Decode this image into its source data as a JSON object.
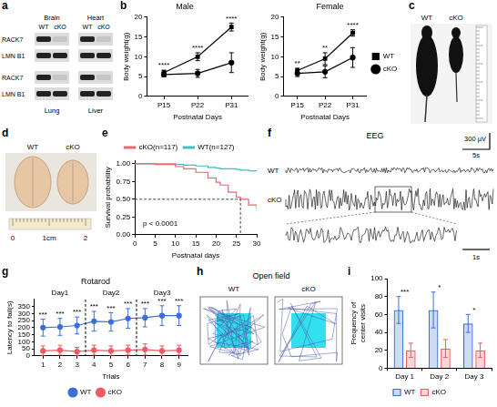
{
  "blot": {
    "panel": "a",
    "tissues": [
      "Brain",
      "Heart",
      "Lung",
      "Liver"
    ],
    "columns": [
      "WT",
      "cKO"
    ],
    "rows": [
      "RACK7",
      "LMN B1"
    ]
  },
  "chart_data": [
    {
      "panel": "b",
      "type": "line",
      "title": "Male",
      "categories": [
        "P15",
        "P22",
        "P31"
      ],
      "x_label": "Postnatal Days",
      "y_label": "Body weight(g)",
      "ylim": [
        0,
        20
      ],
      "yticks": [
        0,
        5,
        10,
        15,
        20
      ],
      "grid": false,
      "series": [
        {
          "name": "WT",
          "color": "#000000",
          "marker": "square",
          "values": [
            6,
            10,
            17.5
          ],
          "errors": [
            0.6,
            1,
            1
          ]
        },
        {
          "name": "cKO",
          "color": "#000000",
          "marker": "circle",
          "values": [
            5.5,
            5.8,
            8.5
          ],
          "errors": [
            0.6,
            1,
            2.5
          ]
        }
      ],
      "significance": [
        "****",
        "****",
        "****"
      ]
    },
    {
      "type": "line",
      "title": "Female",
      "categories": [
        "P15",
        "P22",
        "P31"
      ],
      "x_label": "Postnatal Days",
      "y_label": "Body weight(g)",
      "ylim": [
        0,
        20
      ],
      "yticks": [
        0,
        5,
        10,
        15,
        20
      ],
      "grid": false,
      "legend": "right",
      "series": [
        {
          "name": "WT",
          "color": "#000000",
          "marker": "square",
          "values": [
            6.5,
            9.5,
            16
          ],
          "errors": [
            0.6,
            1.5,
            0.8
          ]
        },
        {
          "name": "cKO",
          "color": "#000000",
          "marker": "circle",
          "values": [
            5.8,
            6.2,
            9.8
          ],
          "errors": [
            0.8,
            1.5,
            2.5
          ]
        }
      ],
      "significance": [
        "**",
        "**",
        "****"
      ]
    },
    {
      "panel": "e",
      "type": "line",
      "line_style": "step",
      "x": [
        0,
        5,
        10,
        12,
        15,
        18,
        20,
        21,
        23,
        25,
        26,
        28,
        30
      ],
      "x_label": "Postnatal days",
      "y_label": "Survival probability",
      "xlim": [
        0,
        30
      ],
      "xticks": [
        0,
        5,
        10,
        15,
        20,
        25,
        30
      ],
      "ylim": [
        0,
        1.05
      ],
      "yticks": [
        {
          "value": 0,
          "label": "0.00"
        },
        0.25,
        {
          "value": 0.5,
          "label": "0.50"
        },
        0.75,
        {
          "value": 1,
          "label": "1.00"
        }
      ],
      "grid": false,
      "legend": "top",
      "series": [
        {
          "name": "cKO(n=117)",
          "color": "#f0646e",
          "values": [
            1,
            0.99,
            0.96,
            0.93,
            0.88,
            0.8,
            0.74,
            0.7,
            0.6,
            0.53,
            0.5,
            0.42,
            0.37
          ]
        },
        {
          "name": "WT(n=127)",
          "color": "#36c2c8",
          "values": [
            1,
            1,
            0.99,
            0.98,
            0.97,
            0.95,
            0.94,
            0.93,
            0.93,
            0.92,
            0.91,
            0.9,
            0.9
          ]
        }
      ],
      "annotation": {
        "text": "p < 0.0001",
        "x": 2,
        "y": 0.1
      },
      "median_survival": {
        "x": 26,
        "y": 0.5
      }
    },
    {
      "panel": "g",
      "type": "line",
      "title": "Rotarod",
      "categories": [
        "1",
        "2",
        "3",
        "4",
        "5",
        "6",
        "7",
        "8",
        "9"
      ],
      "x_label": "Trials",
      "y_label": "Latency to fail(s)",
      "ylim": [
        0,
        400
      ],
      "yticks": [
        0,
        50,
        100,
        150,
        200,
        250,
        300,
        350
      ],
      "grid": false,
      "legend": "bottom",
      "groups": [
        {
          "label": "Day1",
          "categories": [
            "1",
            "2",
            "3"
          ]
        },
        {
          "label": "Day2",
          "categories": [
            "4",
            "5",
            "6"
          ]
        },
        {
          "label": "Day3",
          "categories": [
            "7",
            "8",
            "9"
          ]
        }
      ],
      "series": [
        {
          "name": "WT",
          "color": "#3b6fd6",
          "marker": "circle",
          "values": [
            200,
            205,
            215,
            245,
            240,
            265,
            270,
            285,
            285
          ],
          "errors": [
            60,
            60,
            60,
            70,
            65,
            70,
            65,
            70,
            70
          ]
        },
        {
          "name": "cKO",
          "color": "#ef5b63",
          "marker": "circle",
          "values": [
            35,
            40,
            30,
            40,
            35,
            40,
            45,
            35,
            40
          ],
          "errors": [
            35,
            35,
            30,
            35,
            35,
            35,
            40,
            35,
            35
          ]
        }
      ],
      "significance": [
        "***",
        "***",
        "***",
        "***",
        "***",
        "***",
        "***",
        "***",
        "***"
      ]
    },
    {
      "panel": "i",
      "type": "bar",
      "categories": [
        "Day 1",
        "Day 2",
        "Day 3"
      ],
      "y_label": "Frequency of center visits",
      "ylim": [
        0,
        100
      ],
      "yticks": [
        0,
        20,
        40,
        60,
        80,
        100
      ],
      "grid": false,
      "legend": "bottom",
      "series": [
        {
          "name": "WT",
          "color": "#3b6fd6",
          "values": [
            65,
            65,
            50
          ],
          "errors": [
            15,
            20,
            10
          ]
        },
        {
          "name": "cKO",
          "color": "#ef5b63",
          "values": [
            20,
            22,
            20
          ],
          "errors": [
            8,
            10,
            8
          ]
        }
      ],
      "significance": [
        "***",
        "*",
        "*"
      ]
    }
  ],
  "photo_mice": {
    "panel": "c",
    "labels": [
      "WT",
      "cKO"
    ]
  },
  "photo_brains": {
    "panel": "d",
    "labels": [
      "WT",
      "cKO"
    ],
    "ruler": [
      "0",
      "1cm",
      "2"
    ]
  },
  "eeg": {
    "panel": "f",
    "title": "EEG",
    "traces": [
      "WT",
      "cKO"
    ],
    "amplitude_scale": "300 µV",
    "time_scale": "5s",
    "zoom_time_scale": "1s"
  },
  "open_field": {
    "panel": "h",
    "title": "Open field",
    "labels": [
      "WT",
      "cKO"
    ]
  }
}
